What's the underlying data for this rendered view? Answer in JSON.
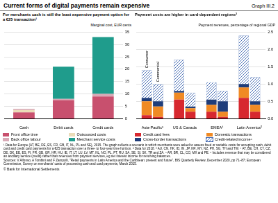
{
  "header": {
    "title": "Current forms of digital payments remain expensive",
    "graph": "Graph III.2"
  },
  "chart_data": [
    {
      "type": "bar",
      "stacked": true,
      "grid": true,
      "legend": "bottom",
      "title": "For merchants cash is still the least expensive payment option for a €25 transaction¹",
      "ylabel": "Marginal cost, EUR cents",
      "categories": [
        "Cash",
        "Debit cards",
        "Credit cards"
      ],
      "series": [
        {
          "name": "Front office time",
          "color": "#c8506e",
          "values": [
            2.5,
            7.5,
            9
          ]
        },
        {
          "name": "Outsourced costs",
          "color": "#eadcb8",
          "values": [
            1,
            0,
            0
          ]
        },
        {
          "name": "Back office labour",
          "color": "#d8a9b6",
          "values": [
            0.5,
            0.5,
            1
          ]
        },
        {
          "name": "Merchant service costs",
          "color": "#1f9c8c",
          "values": [
            0,
            13,
            23
          ]
        }
      ],
      "ylim": [
        0,
        35
      ],
      "yticks": [
        0,
        5,
        10,
        15,
        20,
        25,
        30,
        35
      ]
    },
    {
      "type": "bar",
      "stacked": true,
      "grid": true,
      "legend": "bottom",
      "title": "Payment costs are higher in card-dependent regions²",
      "ylabel": "Payment revenues, percentage of regional GDP",
      "categories": [
        "Asia-Pacific³",
        "US & Canada",
        "EMEA⁴",
        "Latin America⁵"
      ],
      "groups": [
        "Consumer",
        "Commercial"
      ],
      "series": [
        {
          "name": "Credit card fees",
          "color": "#d7282f",
          "values": [
            [
              0.1,
              0.05
            ],
            [
              0.55,
              0.2
            ],
            [
              0.2,
              0.05
            ],
            [
              0.6,
              0.2
            ]
          ]
        },
        {
          "name": "Domestic transactions",
          "color": "#f08a24",
          "values": [
            [
              0.4,
              0.3
            ],
            [
              0.2,
              0.1
            ],
            [
              0.2,
              0.15
            ],
            [
              0.3,
              0.2
            ]
          ]
        },
        {
          "name": "Cross-border transactions",
          "color": "#1f3d7a",
          "values": [
            [
              0.1,
              0.15
            ],
            [
              0.05,
              0.05
            ],
            [
              0.15,
              0.3
            ],
            [
              0.1,
              0.1
            ]
          ]
        },
        {
          "name": "Credit-related income⁶",
          "color": "#4a6fb5",
          "line_style": "hatch",
          "values": [
            [
              0.8,
              0.5
            ],
            [
              0.9,
              0.4
            ],
            [
              0.5,
              0.3
            ],
            [
              1.4,
              0.7
            ]
          ]
        }
      ],
      "ylim": [
        0,
        2.5
      ],
      "yticks": [
        {
          "value": 0,
          "label": "0.0"
        },
        {
          "value": 0.5,
          "label": "0.5"
        },
        {
          "value": 1,
          "label": "1.0"
        },
        {
          "value": 1.5,
          "label": "1.5"
        },
        {
          "value": 2,
          "label": "2.0"
        },
        {
          "value": 2.5,
          "label": "2.5"
        }
      ]
    }
  ],
  "footnotes": "¹ Data for Europe (AT, BE, DE, ES, FR, GB, IT, NL, PL and SE), 2015. The graph reflects a scenario in which merchants were asked to assess fixed or variable costs for accepting cash, debit card and credit card payments for a €25 transaction over a three- to four-year time horizon. ² Data for 2018. ³ AU, CN, HK, ID, IN, JP, KR, MY, NZ, PH, SG, TH and TW. ⁴ AT, BE, CH, CY, CZ, DE, DK, EE, ES, FI, FR, GB, GR, HR, HU, IE, IT, LT, LU, LV, MT, NL, NO, PL, PT, RU, SA, SE, SI, SK, TR and ZA. ⁵ AR, BR, CL, CO, MX and PE. ⁶ Includes revenue that may be considered an ancillary service (credit) rather than revenues from payment services, eg net interest income for revolving balances.",
  "sources": "Sources: V Alfonso, A Tombini and F Zampolli, \"Retail payments in Latin America and the Caribbean: present and future\", BIS Quarterly Review, December 2020, pp 71–87; European Commission, Survey on merchants' costs of processing cash and card payments, March 2015.",
  "copyright": "© Bank for International Settlements"
}
